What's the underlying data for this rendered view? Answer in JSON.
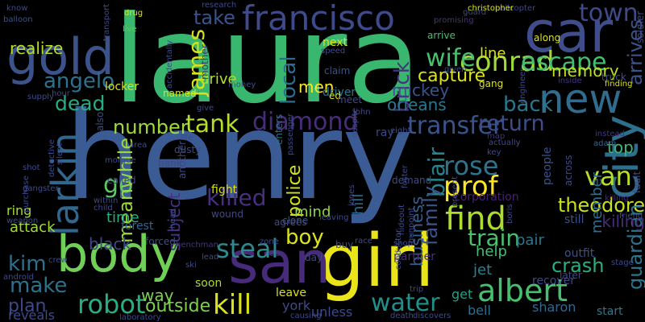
{
  "words": [
    {
      "text": "henry",
      "color": "#3b5b94",
      "rotate": false
    },
    {
      "text": "laura",
      "color": "#39b76f",
      "rotate": false
    },
    {
      "text": "body",
      "color": "#6fcf56",
      "rotate": false
    },
    {
      "text": "girl",
      "color": "#e9e51a",
      "rotate": false
    },
    {
      "text": "san",
      "color": "#472a7a",
      "rotate": false
    },
    {
      "text": "car",
      "color": "#3f4d8b",
      "rotate": false
    },
    {
      "text": "gold",
      "color": "#3b528b",
      "rotate": false
    },
    {
      "text": "city",
      "color": "#2e6f8e",
      "rotate": true
    },
    {
      "text": "new",
      "color": "#2f6c8e",
      "rotate": false
    },
    {
      "text": "francisco",
      "color": "#3f4a8a",
      "rotate": false
    },
    {
      "text": "larkin",
      "color": "#31668e",
      "rotate": true
    },
    {
      "text": "conrad",
      "color": "#a0da39",
      "rotate": false
    },
    {
      "text": "albert",
      "color": "#46c06f",
      "rotate": false
    },
    {
      "text": "steal",
      "color": "#2e8a8c",
      "rotate": false
    },
    {
      "text": "find",
      "color": "#addc30",
      "rotate": false
    },
    {
      "text": "van",
      "color": "#b5de2b",
      "rotate": false
    },
    {
      "text": "diamond",
      "color": "#472d7b",
      "rotate": false
    },
    {
      "text": "transfer",
      "color": "#39548c",
      "rotate": false
    },
    {
      "text": "return",
      "color": "#3f4c8a",
      "rotate": false
    },
    {
      "text": "water",
      "color": "#21908d",
      "rotate": false
    },
    {
      "text": "robot",
      "color": "#29af7f",
      "rotate": false
    },
    {
      "text": "kill",
      "color": "#dae319",
      "rotate": false
    },
    {
      "text": "train",
      "color": "#4ac16d",
      "rotate": false
    },
    {
      "text": "escape",
      "color": "#44bf70",
      "rotate": false
    },
    {
      "text": "tank",
      "color": "#b5de2b",
      "rotate": false
    },
    {
      "text": "number",
      "color": "#a0da39",
      "rotate": false
    },
    {
      "text": "killed",
      "color": "#472f7d",
      "rotate": false
    },
    {
      "text": "dead",
      "color": "#27ad81",
      "rotate": false
    },
    {
      "text": "wife",
      "color": "#48c16e",
      "rotate": false
    },
    {
      "text": "angelo",
      "color": "#2c728e",
      "rotate": false
    },
    {
      "text": "james",
      "color": "#d8e219",
      "rotate": true
    },
    {
      "text": "back",
      "color": "#2a788e",
      "rotate": false
    },
    {
      "text": "town",
      "color": "#3e4a89",
      "rotate": false
    },
    {
      "text": "prof",
      "color": "#fde725",
      "rotate": false
    },
    {
      "text": "rose",
      "color": "#2c738e",
      "rotate": false
    },
    {
      "text": "blair",
      "color": "#25848e",
      "rotate": true
    },
    {
      "text": "go",
      "color": "#5ec962",
      "rotate": false
    },
    {
      "text": "kim",
      "color": "#2d708e",
      "rotate": false
    },
    {
      "text": "boy",
      "color": "#dae319",
      "rotate": false
    },
    {
      "text": "make",
      "color": "#2c718e",
      "rotate": false
    },
    {
      "text": "crash",
      "color": "#29af7f",
      "rotate": false
    },
    {
      "text": "meanwhile",
      "color": "#9bd93c",
      "rotate": true
    },
    {
      "text": "theodore",
      "color": "#c8e020",
      "rotate": false
    },
    {
      "text": "guardian",
      "color": "#2b758e",
      "rotate": true
    },
    {
      "text": "arrives",
      "color": "#3b528b",
      "rotate": true
    },
    {
      "text": "local",
      "color": "#2f6b8e",
      "rotate": true
    },
    {
      "text": "brick",
      "color": "#46337f",
      "rotate": true
    },
    {
      "text": "take",
      "color": "#3a548c",
      "rotate": false
    },
    {
      "text": "memory",
      "color": "#c0df25",
      "rotate": false
    },
    {
      "text": "outside",
      "color": "#7ad151",
      "rotate": false
    },
    {
      "text": "plan",
      "color": "#3e4989",
      "rotate": false
    },
    {
      "text": "police",
      "color": "#d2e21b",
      "rotate": true
    },
    {
      "text": "family",
      "color": "#3b528b",
      "rotate": true
    },
    {
      "text": "capture",
      "color": "#dde318",
      "rotate": false
    },
    {
      "text": "business",
      "color": "#355f8d",
      "rotate": true
    },
    {
      "text": "top",
      "color": "#3aba76",
      "rotate": false
    },
    {
      "text": "kiling",
      "color": "#472c7a",
      "rotate": false
    },
    {
      "text": "way",
      "color": "#7ad151",
      "rotate": false
    },
    {
      "text": "mickey",
      "color": "#3b528b",
      "rotate": false
    },
    {
      "text": "orleans",
      "color": "#2a788e",
      "rotate": false
    },
    {
      "text": "men",
      "color": "#fde725",
      "rotate": false
    },
    {
      "text": "drive",
      "color": "#b5de2b",
      "rotate": false
    },
    {
      "text": "line",
      "color": "#dae319",
      "rotate": false
    },
    {
      "text": "mind",
      "color": "#90d743",
      "rotate": false
    },
    {
      "text": "time",
      "color": "#28ae80",
      "rotate": false
    },
    {
      "text": "help",
      "color": "#44bf70",
      "rotate": false
    },
    {
      "text": "pair",
      "color": "#2a788e",
      "rotate": false
    },
    {
      "text": "jet",
      "color": "#25858e",
      "rotate": false
    },
    {
      "text": "get",
      "color": "#1fa088",
      "rotate": false
    },
    {
      "text": "bell",
      "color": "#2e6e8e",
      "rotate": false
    },
    {
      "text": "sharon",
      "color": "#31688e",
      "rotate": false
    },
    {
      "text": "york",
      "color": "#3e4a89",
      "rotate": false
    },
    {
      "text": "unless",
      "color": "#3e4a89",
      "rotate": false
    },
    {
      "text": "black",
      "color": "#3f4788",
      "rotate": false
    },
    {
      "text": "attack",
      "color": "#a2da37",
      "rotate": false
    },
    {
      "text": "reveals",
      "color": "#3e4a89",
      "rotate": false
    },
    {
      "text": "subject",
      "color": "#46327e",
      "rotate": true
    },
    {
      "text": "realize",
      "color": "#b5de2b",
      "rotate": false
    },
    {
      "text": "ring",
      "color": "#a5db36",
      "rotate": false
    },
    {
      "text": "ray",
      "color": "#3f4889",
      "rotate": false
    },
    {
      "text": "hill",
      "color": "#2e6e8e",
      "rotate": true
    },
    {
      "text": "partner",
      "color": "#472f7d",
      "rotate": false
    },
    {
      "text": "leave",
      "color": "#d8e219",
      "rotate": false
    },
    {
      "text": "soon",
      "color": "#a8db34",
      "rotate": false
    },
    {
      "text": "fight",
      "color": "#d5e21a",
      "rotate": false
    },
    {
      "text": "forest",
      "color": "#31668e",
      "rotate": false
    },
    {
      "text": "member",
      "color": "#2e6e8e",
      "rotate": true
    },
    {
      "text": "corporation",
      "color": "#482071",
      "rotate": false
    },
    {
      "text": "recover",
      "color": "#3e4989",
      "rotate": false
    },
    {
      "text": "start",
      "color": "#2a788e",
      "rotate": false
    },
    {
      "text": "outfit",
      "color": "#3b528b",
      "rotate": false
    },
    {
      "text": "later",
      "color": "#3f4788",
      "rotate": false
    },
    {
      "text": "still",
      "color": "#3b528b",
      "rotate": false
    },
    {
      "text": "stage",
      "color": "#3e4a89",
      "rotate": false
    },
    {
      "text": "killing",
      "color": "#472c7a",
      "rotate": false
    },
    {
      "text": "people",
      "color": "#3b528b",
      "rotate": true
    },
    {
      "text": "across",
      "color": "#3e4a89",
      "rotate": true
    },
    {
      "text": "instead",
      "color": "#46337f",
      "rotate": false
    },
    {
      "text": "adam",
      "color": "#31688e",
      "rotate": false
    },
    {
      "text": "fault",
      "color": "#3e4a89",
      "rotate": true
    },
    {
      "text": "friend",
      "color": "#3e4989",
      "rotate": false
    },
    {
      "text": "truck",
      "color": "#3b528b",
      "rotate": false
    },
    {
      "text": "finding",
      "color": "#dae319",
      "rotate": false
    },
    {
      "text": "along",
      "color": "#dae319",
      "rotate": false
    },
    {
      "text": "soldier",
      "color": "#3e4a89",
      "rotate": true
    },
    {
      "text": "hellcopter",
      "color": "#3f4788",
      "rotate": false
    },
    {
      "text": "christopher",
      "color": "#dae319",
      "rotate": false
    },
    {
      "text": "guard",
      "color": "#3f4788",
      "rotate": false
    },
    {
      "text": "promising",
      "color": "#46337f",
      "rotate": false
    },
    {
      "text": "arrive",
      "color": "#44bf70",
      "rotate": false
    },
    {
      "text": "research",
      "color": "#3e4a89",
      "rotate": false
    },
    {
      "text": "drug",
      "color": "#dae319",
      "rotate": false
    },
    {
      "text": "live",
      "color": "#5ec962",
      "rotate": false
    },
    {
      "text": "know",
      "color": "#3e4a89",
      "rotate": false
    },
    {
      "text": "balloon",
      "color": "#3b528b",
      "rotate": false
    },
    {
      "text": "transport",
      "color": "#3e4a89",
      "rotate": true
    },
    {
      "text": "supply",
      "color": "#3e4a89",
      "rotate": false
    },
    {
      "text": "hour",
      "color": "#3e4a89",
      "rotate": false
    },
    {
      "text": "locker",
      "color": "#d5e21a",
      "rotate": false
    },
    {
      "text": "named",
      "color": "#dae319",
      "rotate": false
    },
    {
      "text": "mother",
      "color": "#46337f",
      "rotate": true
    },
    {
      "text": "accidentally",
      "color": "#3e4a89",
      "rotate": true
    },
    {
      "text": "money",
      "color": "#3e4a89",
      "rotate": false
    },
    {
      "text": "give",
      "color": "#3e4a89",
      "rotate": false
    },
    {
      "text": "next",
      "color": "#dae319",
      "rotate": false
    },
    {
      "text": "speed",
      "color": "#3e4a89",
      "rotate": false
    },
    {
      "text": "claim",
      "color": "#3b528b",
      "rotate": false
    },
    {
      "text": "driver",
      "color": "#2a788e",
      "rotate": false
    },
    {
      "text": "ed",
      "color": "#dae319",
      "rotate": false
    },
    {
      "text": "meet",
      "color": "#3e4a89",
      "rotate": false
    },
    {
      "text": "enters",
      "color": "#2e6e8e",
      "rotate": true
    },
    {
      "text": "passenger",
      "color": "#3e4a89",
      "rotate": true
    },
    {
      "text": "demand",
      "color": "#3e4a89",
      "rotate": false
    },
    {
      "text": "despite",
      "color": "#3e4a89",
      "rotate": true
    },
    {
      "text": "leaving",
      "color": "#3e4a89",
      "rotate": false
    },
    {
      "text": "clone",
      "color": "#3b528b",
      "rotate": false
    },
    {
      "text": "agrees",
      "color": "#3e4a89",
      "rotate": false
    },
    {
      "text": "gang",
      "color": "#dae319",
      "rotate": false
    },
    {
      "text": "given",
      "color": "#3e4a89",
      "rotate": false
    },
    {
      "text": "inside",
      "color": "#46337f",
      "rotate": false
    },
    {
      "text": "map",
      "color": "#46337f",
      "rotate": false
    },
    {
      "text": "actually",
      "color": "#3e4a89",
      "rotate": false
    },
    {
      "text": "key",
      "color": "#3e4a89",
      "rotate": false
    },
    {
      "text": "eight",
      "color": "#3e4a89",
      "rotate": false
    },
    {
      "text": "bank",
      "color": "#3e4a89",
      "rotate": false
    },
    {
      "text": "called",
      "color": "#3e4a89",
      "rotate": false
    },
    {
      "text": "morgue",
      "color": "#3e4a89",
      "rotate": false
    },
    {
      "text": "area",
      "color": "#3e4a89",
      "rotate": false
    },
    {
      "text": "life",
      "color": "#3e4a89",
      "rotate": false
    },
    {
      "text": "within",
      "color": "#3e4a89",
      "rotate": false
    },
    {
      "text": "child",
      "color": "#3e4a89",
      "rotate": false
    },
    {
      "text": "another",
      "color": "#3e4a89",
      "rotate": true
    },
    {
      "text": "dusty",
      "color": "#3e4a89",
      "rotate": false
    },
    {
      "text": "also",
      "color": "#3e4a89",
      "rotate": true
    },
    {
      "text": "wound",
      "color": "#3e4a89",
      "rotate": false
    },
    {
      "text": "head",
      "color": "#3e4a89",
      "rotate": true
    },
    {
      "text": "forced",
      "color": "#3e4a89",
      "rotate": false
    },
    {
      "text": "henchman",
      "color": "#46337f",
      "rotate": false
    },
    {
      "text": "ski",
      "color": "#3e4a89",
      "rotate": false
    },
    {
      "text": "lab",
      "color": "#3e4a89",
      "rotate": false
    },
    {
      "text": "day",
      "color": "#3e4a89",
      "rotate": false
    },
    {
      "text": "buy",
      "color": "#3e4a89",
      "rotate": false
    },
    {
      "text": "race",
      "color": "#3e4a89",
      "rotate": false
    },
    {
      "text": "shop",
      "color": "#3e4a89",
      "rotate": false
    },
    {
      "text": "hideout",
      "color": "#3e4a89",
      "rotate": true
    },
    {
      "text": "gunpoint",
      "color": "#3e4a89",
      "rotate": true
    },
    {
      "text": "trip",
      "color": "#3e4a89",
      "rotate": false
    },
    {
      "text": "conductor",
      "color": "#3e4a89",
      "rotate": true
    },
    {
      "text": "causing",
      "color": "#3e4a89",
      "rotate": false
    },
    {
      "text": "death",
      "color": "#3e4a89",
      "rotate": false
    },
    {
      "text": "discovers",
      "color": "#3e4a89",
      "rotate": false
    },
    {
      "text": "laboratory",
      "color": "#3e4a89",
      "rotate": false
    },
    {
      "text": "boris",
      "color": "#3e4a89",
      "rotate": true
    },
    {
      "text": "jones",
      "color": "#3e4a89",
      "rotate": true
    },
    {
      "text": "present",
      "color": "#3e4a89",
      "rotate": true
    },
    {
      "text": "foster",
      "color": "#3e4a89",
      "rotate": true
    },
    {
      "text": "weapon",
      "color": "#3e4a89",
      "rotate": false
    },
    {
      "text": "purchase",
      "color": "#3e4a89",
      "rotate": true
    },
    {
      "text": "detective",
      "color": "#3e4a89",
      "rotate": true
    },
    {
      "text": "silent",
      "color": "#3e4a89",
      "rotate": true
    },
    {
      "text": "gangster",
      "color": "#3e4a89",
      "rotate": false
    },
    {
      "text": "shot",
      "color": "#3e4a89",
      "rotate": false
    },
    {
      "text": "crew",
      "color": "#3e4a89",
      "rotate": false
    },
    {
      "text": "android",
      "color": "#3e4a89",
      "rotate": false
    },
    {
      "text": "john",
      "color": "#3e4a89",
      "rotate": false
    },
    {
      "text": "engineer",
      "color": "#3e4a89",
      "rotate": true
    },
    {
      "text": "lead",
      "color": "#3e4a89",
      "rotate": false
    },
    {
      "text": "zone",
      "color": "#3e4a89",
      "rotate": false
    }
  ]
}
